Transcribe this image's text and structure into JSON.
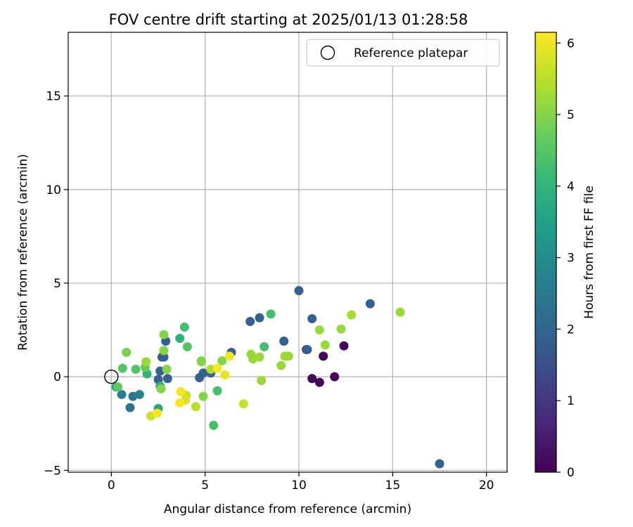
{
  "chart_data": {
    "type": "scatter",
    "title": "FOV centre drift starting at 2025/01/13 01:28:58",
    "xlabel": "Angular distance from reference (arcmin)",
    "ylabel": "Rotation from reference (arcmin)",
    "xlim": [
      -2.3,
      21.1
    ],
    "ylim": [
      -5.1,
      18.4
    ],
    "xticks": [
      0,
      5,
      10,
      15,
      20
    ],
    "yticks": [
      -5,
      0,
      5,
      10,
      15
    ],
    "xtick_labels": [
      "0",
      "5",
      "10",
      "15",
      "20"
    ],
    "ytick_labels": [
      "−5",
      "0",
      "5",
      "10",
      "15"
    ],
    "grid": true,
    "legend": {
      "placement": "top-right",
      "entries": [
        {
          "label": "Reference platepar",
          "marker": "hollow-circle"
        }
      ]
    },
    "reference_point": {
      "x": 0,
      "y": 0
    },
    "colorbar": {
      "label": "Hours from first FF file",
      "range": [
        0,
        6.15
      ],
      "ticks": [
        0,
        1,
        2,
        3,
        4,
        5,
        6
      ],
      "tick_labels": [
        "0",
        "1",
        "2",
        "3",
        "4",
        "5",
        "6"
      ],
      "colormap": "viridis"
    },
    "colormap_stops": [
      "#440154",
      "#482878",
      "#3e4989",
      "#31688e",
      "#26828e",
      "#1f9e89",
      "#35b779",
      "#6ece58",
      "#b5de2b",
      "#fde725"
    ],
    "points": [
      {
        "x": 10.7,
        "y": -0.1,
        "c": 0.1
      },
      {
        "x": 11.1,
        "y": -0.3,
        "c": 0.1
      },
      {
        "x": 11.3,
        "y": 1.1,
        "c": 0.1
      },
      {
        "x": 11.9,
        "y": 0.0,
        "c": 0.1
      },
      {
        "x": 12.4,
        "y": 1.65,
        "c": 0.1
      },
      {
        "x": 10.4,
        "y": 1.45,
        "c": 0.6
      },
      {
        "x": 17.5,
        "y": -4.65,
        "c": 1.9
      },
      {
        "x": 10.0,
        "y": 4.6,
        "c": 1.9
      },
      {
        "x": 13.8,
        "y": 3.9,
        "c": 1.9
      },
      {
        "x": 10.7,
        "y": 3.1,
        "c": 1.9
      },
      {
        "x": 7.9,
        "y": 3.15,
        "c": 1.9
      },
      {
        "x": 7.4,
        "y": 2.95,
        "c": 1.9
      },
      {
        "x": 9.2,
        "y": 1.9,
        "c": 1.9
      },
      {
        "x": 10.45,
        "y": 1.45,
        "c": 1.9
      },
      {
        "x": 6.4,
        "y": 1.3,
        "c": 1.9
      },
      {
        "x": 4.9,
        "y": 0.2,
        "c": 1.9
      },
      {
        "x": 5.3,
        "y": 0.2,
        "c": 1.9
      },
      {
        "x": 4.7,
        "y": -0.05,
        "c": 1.9
      },
      {
        "x": 2.9,
        "y": 1.9,
        "c": 1.9
      },
      {
        "x": 2.7,
        "y": 1.05,
        "c": 1.9
      },
      {
        "x": 2.8,
        "y": 1.05,
        "c": 1.9
      },
      {
        "x": 2.6,
        "y": 0.3,
        "c": 1.9
      },
      {
        "x": 2.5,
        "y": -0.15,
        "c": 1.9
      },
      {
        "x": 3.0,
        "y": -0.1,
        "c": 1.9
      },
      {
        "x": 1.15,
        "y": -1.05,
        "c": 2.4
      },
      {
        "x": 1.0,
        "y": -1.65,
        "c": 2.4
      },
      {
        "x": 0.55,
        "y": -0.95,
        "c": 2.7
      },
      {
        "x": 1.5,
        "y": -0.95,
        "c": 2.7
      },
      {
        "x": 0.25,
        "y": -0.55,
        "c": 3.7
      },
      {
        "x": 2.5,
        "y": -1.7,
        "c": 3.7
      },
      {
        "x": 2.6,
        "y": -0.5,
        "c": 3.9
      },
      {
        "x": 1.9,
        "y": 0.15,
        "c": 4.0
      },
      {
        "x": 3.65,
        "y": 2.05,
        "c": 4.0
      },
      {
        "x": 3.9,
        "y": 2.65,
        "c": 4.3
      },
      {
        "x": 8.5,
        "y": 3.35,
        "c": 4.3
      },
      {
        "x": 8.15,
        "y": 1.6,
        "c": 4.3
      },
      {
        "x": 5.65,
        "y": -0.75,
        "c": 4.3
      },
      {
        "x": 5.45,
        "y": -2.6,
        "c": 4.3
      },
      {
        "x": 4.05,
        "y": 1.6,
        "c": 4.5
      },
      {
        "x": 1.3,
        "y": 0.4,
        "c": 4.5
      },
      {
        "x": 0.6,
        "y": 0.45,
        "c": 4.5
      },
      {
        "x": 0.35,
        "y": -0.55,
        "c": 4.6
      },
      {
        "x": 1.8,
        "y": 0.5,
        "c": 4.7
      },
      {
        "x": 0.8,
        "y": 1.3,
        "c": 4.9
      },
      {
        "x": 1.85,
        "y": 0.8,
        "c": 5.2
      },
      {
        "x": 2.8,
        "y": 2.25,
        "c": 5.0
      },
      {
        "x": 2.8,
        "y": 1.4,
        "c": 5.0
      },
      {
        "x": 2.95,
        "y": 0.4,
        "c": 5.0
      },
      {
        "x": 2.65,
        "y": -0.65,
        "c": 5.0
      },
      {
        "x": 4.8,
        "y": 0.85,
        "c": 5.0
      },
      {
        "x": 4.8,
        "y": 0.8,
        "c": 5.0
      },
      {
        "x": 4.9,
        "y": -1.05,
        "c": 5.0
      },
      {
        "x": 5.9,
        "y": 0.85,
        "c": 5.0
      },
      {
        "x": 7.45,
        "y": 1.2,
        "c": 5.2
      },
      {
        "x": 7.55,
        "y": 0.95,
        "c": 5.2
      },
      {
        "x": 7.9,
        "y": 1.05,
        "c": 5.2
      },
      {
        "x": 8.0,
        "y": -0.2,
        "c": 5.2
      },
      {
        "x": 9.05,
        "y": 0.6,
        "c": 5.2
      },
      {
        "x": 9.25,
        "y": 1.1,
        "c": 5.2
      },
      {
        "x": 9.45,
        "y": 1.1,
        "c": 5.2
      },
      {
        "x": 11.1,
        "y": 2.5,
        "c": 5.2
      },
      {
        "x": 11.4,
        "y": 1.7,
        "c": 5.2
      },
      {
        "x": 12.25,
        "y": 2.55,
        "c": 5.2
      },
      {
        "x": 12.8,
        "y": 3.3,
        "c": 5.3
      },
      {
        "x": 15.4,
        "y": 3.45,
        "c": 5.2
      },
      {
        "x": 5.3,
        "y": 0.4,
        "c": 5.4
      },
      {
        "x": 4.5,
        "y": -1.6,
        "c": 5.5
      },
      {
        "x": 7.05,
        "y": -1.45,
        "c": 5.6
      },
      {
        "x": 2.1,
        "y": -2.1,
        "c": 5.7
      },
      {
        "x": 4.0,
        "y": -1.0,
        "c": 5.7
      },
      {
        "x": 3.95,
        "y": -1.25,
        "c": 5.8
      },
      {
        "x": 6.05,
        "y": 0.1,
        "c": 5.9
      },
      {
        "x": 6.3,
        "y": 1.1,
        "c": 6.0
      },
      {
        "x": 5.65,
        "y": 0.45,
        "c": 6.1
      },
      {
        "x": 3.7,
        "y": -0.8,
        "c": 6.1
      },
      {
        "x": 3.65,
        "y": -1.4,
        "c": 6.1
      },
      {
        "x": 2.45,
        "y": -1.95,
        "c": 6.1
      }
    ]
  }
}
